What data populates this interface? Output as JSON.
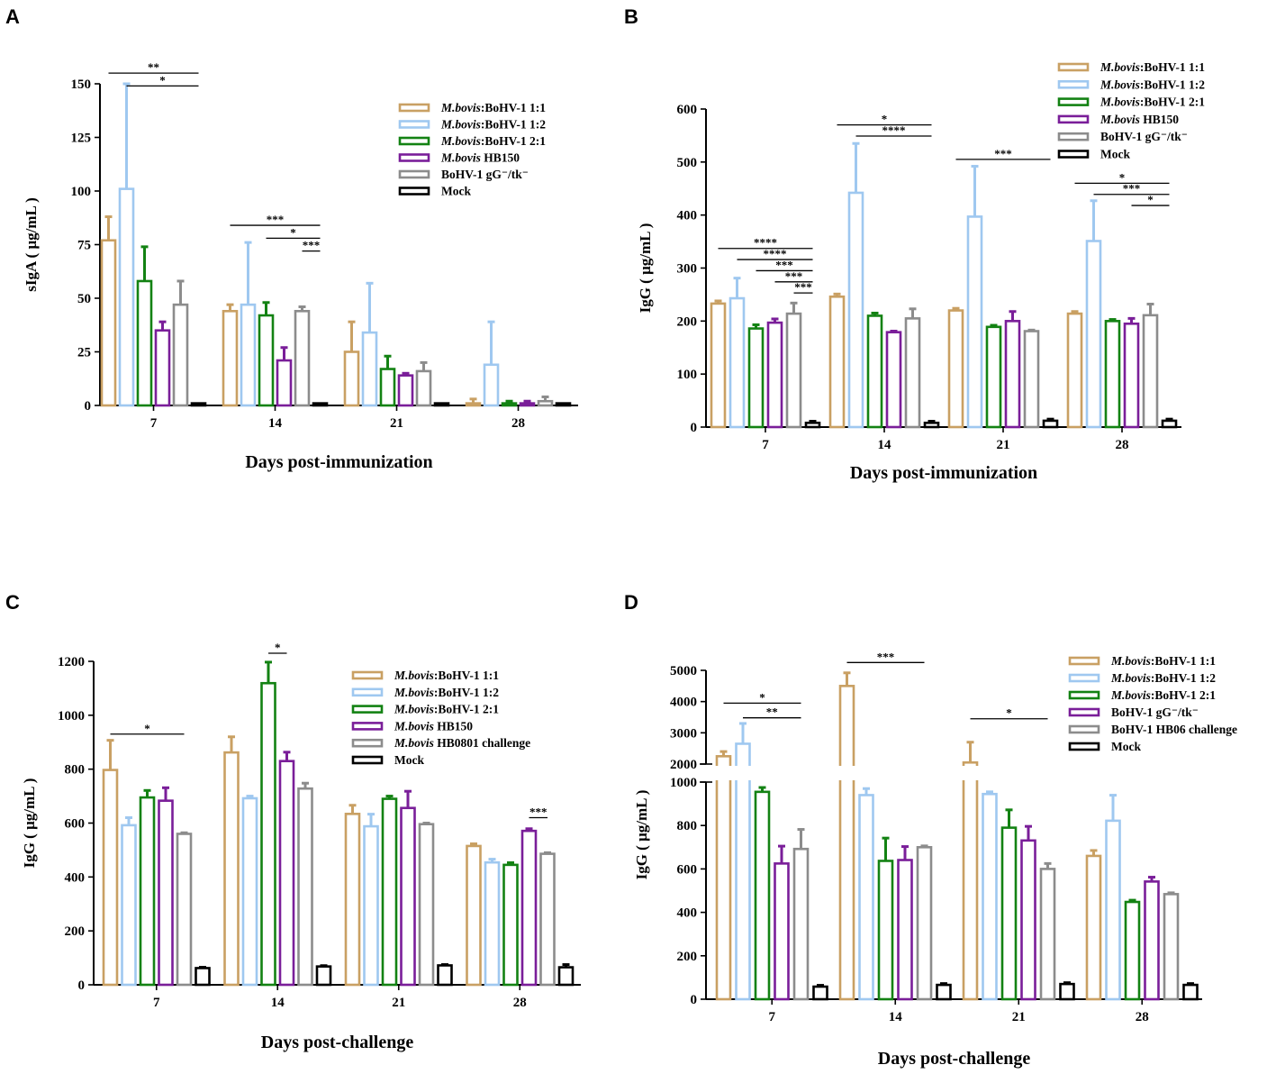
{
  "figure": {
    "colors": [
      "#C9A063",
      "#9FC8F0",
      "#138213",
      "#7A1E99",
      "#8C8C8C",
      "#000000"
    ]
  },
  "chart_data": [
    {
      "panel": "A",
      "type": "bar",
      "title": "",
      "xlabel": "Days post-immunization",
      "ylabel": "sIgA ( μg/mL )",
      "categories": [
        "7",
        "14",
        "21",
        "28"
      ],
      "ylim": [
        0,
        150
      ],
      "yticks": [
        "0",
        "25",
        "50",
        "75",
        "100",
        "125",
        "150"
      ],
      "legend_position": "top-right",
      "series": [
        {
          "italic": "M.bovis",
          "name": ":BoHV-1 1:1",
          "values": [
            77,
            44,
            25,
            1
          ],
          "errors": [
            11,
            3,
            14,
            2
          ]
        },
        {
          "italic": "M.bovis",
          "name": ":BoHV-1 1:2",
          "values": [
            101,
            47,
            34,
            19
          ],
          "errors": [
            49,
            29,
            23,
            20
          ]
        },
        {
          "italic": "M.bovis",
          "name": ":BoHV-1 2:1",
          "values": [
            58,
            42,
            17,
            1
          ],
          "errors": [
            16,
            6,
            6,
            1
          ]
        },
        {
          "italic": "M.bovis",
          "name": " HB150",
          "values": [
            35,
            21,
            14,
            1
          ],
          "errors": [
            4,
            6,
            1,
            1
          ]
        },
        {
          "italic": "",
          "name": "BoHV-1 gG⁻/tk⁻",
          "values": [
            47,
            44,
            16,
            2
          ],
          "errors": [
            11,
            2,
            4,
            2
          ]
        },
        {
          "italic": "",
          "name": "Mock",
          "values": [
            1,
            1,
            1,
            1
          ],
          "errors": [
            0,
            0,
            0,
            0
          ]
        }
      ],
      "significance": [
        {
          "label": "**",
          "cat": 0,
          "from": 0,
          "to": 5,
          "y": 155
        },
        {
          "label": "*",
          "cat": 0,
          "from": 1,
          "to": 5,
          "y": 149
        },
        {
          "label": "***",
          "cat": 1,
          "from": 0,
          "to": 5,
          "y": 84
        },
        {
          "label": "*",
          "cat": 1,
          "from": 2,
          "to": 5,
          "y": 78
        },
        {
          "label": "***",
          "cat": 1,
          "from": 4,
          "to": 5,
          "y": 72
        }
      ]
    },
    {
      "panel": "B",
      "type": "bar",
      "title": "",
      "xlabel": "Days post-immunization",
      "ylabel": "IgG ( μg/mL )",
      "categories": [
        "7",
        "14",
        "21",
        "28"
      ],
      "ylim": [
        0,
        600
      ],
      "yticks": [
        "0",
        "100",
        "200",
        "300",
        "400",
        "500",
        "600"
      ],
      "legend_position": "top-right",
      "series": [
        {
          "italic": "M.bovis",
          "name": ":BoHV-1 1:1",
          "values": [
            233,
            246,
            220,
            214
          ],
          "errors": [
            5,
            5,
            4,
            4
          ]
        },
        {
          "italic": "M.bovis",
          "name": ":BoHV-1 1:2",
          "values": [
            243,
            442,
            397,
            351
          ],
          "errors": [
            38,
            93,
            95,
            76
          ]
        },
        {
          "italic": "M.bovis",
          "name": ":BoHV-1 2:1",
          "values": [
            186,
            210,
            189,
            200
          ],
          "errors": [
            7,
            5,
            3,
            3
          ]
        },
        {
          "italic": "M.bovis",
          "name": " HB150",
          "values": [
            197,
            179,
            200,
            195
          ],
          "errors": [
            7,
            2,
            18,
            10
          ]
        },
        {
          "italic": "",
          "name": "BoHV-1 gG⁻/tk⁻",
          "values": [
            214,
            205,
            181,
            211
          ],
          "errors": [
            20,
            18,
            2,
            21
          ]
        },
        {
          "italic": "",
          "name": "Mock",
          "values": [
            8,
            8,
            12,
            12
          ],
          "errors": [
            3,
            3,
            3,
            3
          ]
        }
      ],
      "significance": [
        {
          "label": "****",
          "cat": 0,
          "from": 0,
          "to": 5,
          "y": 337
        },
        {
          "label": "****",
          "cat": 0,
          "from": 1,
          "to": 5,
          "y": 316
        },
        {
          "label": "***",
          "cat": 0,
          "from": 2,
          "to": 5,
          "y": 295
        },
        {
          "label": "***",
          "cat": 0,
          "from": 3,
          "to": 5,
          "y": 274
        },
        {
          "label": "***",
          "cat": 0,
          "from": 4,
          "to": 5,
          "y": 253
        },
        {
          "label": "*",
          "cat": 1,
          "from": 0,
          "to": 5,
          "y": 570
        },
        {
          "label": "****",
          "cat": 1,
          "from": 1,
          "to": 5,
          "y": 549
        },
        {
          "label": "***",
          "cat": 2,
          "from": 0,
          "to": 5,
          "y": 505
        },
        {
          "label": "*",
          "cat": 3,
          "from": 0,
          "to": 5,
          "y": 460
        },
        {
          "label": "***",
          "cat": 3,
          "from": 1,
          "to": 5,
          "y": 439
        },
        {
          "label": "*",
          "cat": 3,
          "from": 3,
          "to": 5,
          "y": 418
        }
      ]
    },
    {
      "panel": "C",
      "type": "bar",
      "title": "",
      "xlabel": "Days post-challenge",
      "ylabel": "IgG ( μg/mL )",
      "categories": [
        "7",
        "14",
        "21",
        "28"
      ],
      "ylim": [
        0,
        1200
      ],
      "yticks": [
        "0",
        "200",
        "400",
        "600",
        "800",
        "1000",
        "1200"
      ],
      "legend_position": "top-right",
      "series": [
        {
          "italic": "M.bovis",
          "name": ":BoHV-1 1:1",
          "values": [
            797,
            862,
            634,
            515
          ],
          "errors": [
            110,
            58,
            32,
            8
          ]
        },
        {
          "italic": "M.bovis",
          "name": ":BoHV-1 1:2",
          "values": [
            592,
            692,
            588,
            454
          ],
          "errors": [
            28,
            8,
            45,
            12
          ]
        },
        {
          "italic": "M.bovis",
          "name": ":BoHV-1 2:1",
          "values": [
            695,
            1119,
            690,
            445
          ],
          "errors": [
            26,
            78,
            10,
            8
          ]
        },
        {
          "italic": "M.bovis",
          "name": " HB150",
          "values": [
            683,
            830,
            656,
            571
          ],
          "errors": [
            48,
            33,
            62,
            8
          ]
        },
        {
          "italic": "M.bovis",
          "name": " HB0801 challenge",
          "values": [
            560,
            728,
            596,
            486
          ],
          "errors": [
            4,
            20,
            4,
            4
          ]
        },
        {
          "italic": "",
          "name": "Mock",
          "values": [
            62,
            68,
            72,
            65
          ],
          "errors": [
            3,
            3,
            3,
            10
          ]
        }
      ],
      "significance": [
        {
          "label": "*",
          "cat": 0,
          "from": 0,
          "to": 4,
          "y": 930
        },
        {
          "label": "*",
          "cat": 1,
          "from": 2,
          "to": 3,
          "y": 1230
        },
        {
          "label": "***",
          "cat": 3,
          "from": 3,
          "to": 4,
          "y": 620
        }
      ]
    },
    {
      "panel": "D",
      "type": "bar",
      "title": "",
      "xlabel": "Days post-challenge",
      "ylabel": "IgG ( μg/mL )",
      "categories": [
        "7",
        "14",
        "21",
        "28"
      ],
      "ylim": [
        0,
        5000
      ],
      "axis_break": [
        1000,
        2000
      ],
      "yticks": [
        "0",
        "200",
        "400",
        "600",
        "800",
        "1000",
        "2000",
        "3000",
        "4000",
        "5000"
      ],
      "legend_position": "top-right",
      "series": [
        {
          "italic": "M.bovis",
          "name": ":BoHV-1 1:1",
          "values": [
            2250,
            4500,
            2050,
            660
          ],
          "errors": [
            150,
            420,
            650,
            25
          ]
        },
        {
          "italic": "M.bovis",
          "name": ":BoHV-1 1:2",
          "values": [
            2650,
            940,
            945,
            822
          ],
          "errors": [
            650,
            30,
            10,
            180
          ]
        },
        {
          "italic": "M.bovis",
          "name": ":BoHV-1 2:1",
          "values": [
            955,
            637,
            790,
            448
          ],
          "errors": [
            20,
            105,
            82,
            8
          ]
        },
        {
          "italic": "",
          "name": "BoHV-1 gG⁻/tk⁻",
          "values": [
            625,
            641,
            731,
            542
          ],
          "errors": [
            80,
            62,
            65,
            20
          ]
        },
        {
          "italic": "",
          "name": "BoHV-1 HB06 challenge",
          "values": [
            692,
            700,
            600,
            484
          ],
          "errors": [
            90,
            6,
            25,
            6
          ]
        },
        {
          "italic": "",
          "name": "Mock",
          "values": [
            58,
            66,
            70,
            66
          ],
          "errors": [
            6,
            6,
            6,
            6
          ]
        }
      ],
      "significance": [
        {
          "label": "*",
          "cat": 0,
          "from": 0,
          "to": 4,
          "y": 3950
        },
        {
          "label": "**",
          "cat": 0,
          "from": 1,
          "to": 4,
          "y": 3480
        },
        {
          "label": "***",
          "cat": 1,
          "from": 0,
          "to": 4,
          "y": 5250
        },
        {
          "label": "*",
          "cat": 2,
          "from": 0,
          "to": 4,
          "y": 3450
        }
      ]
    }
  ]
}
